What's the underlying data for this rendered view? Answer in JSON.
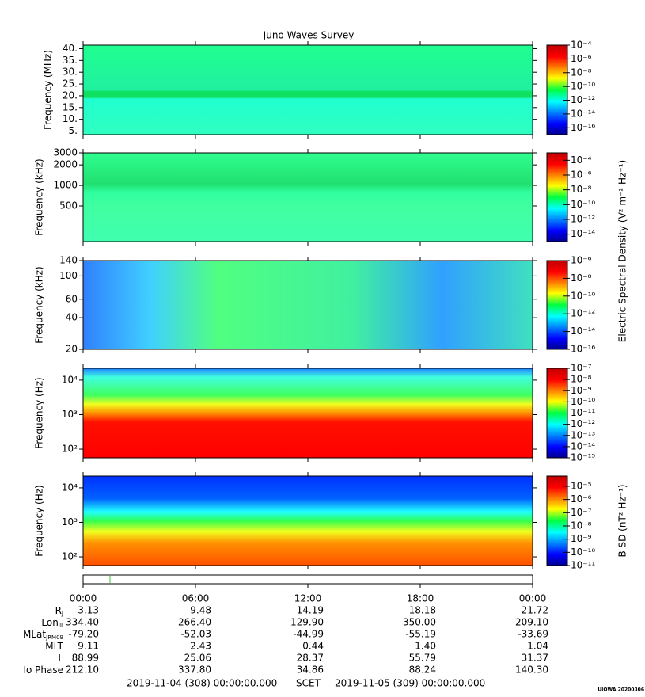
{
  "title": "Juno Waves Survey",
  "e_colorbar_label": "Electric Spectral Density (V² m⁻² Hz⁻¹)",
  "chart_data": [
    {
      "type": "heatmap",
      "ylabel": "Frequency (MHz)",
      "log_y": false,
      "ylim": [
        3.5,
        41.5
      ],
      "yticks": [
        {
          "value": 5,
          "label": "5."
        },
        {
          "value": 10,
          "label": "10."
        },
        {
          "value": 15,
          "label": "15."
        },
        {
          "value": 20,
          "label": "20."
        },
        {
          "value": 25,
          "label": "25."
        },
        {
          "value": 30,
          "label": "30."
        },
        {
          "value": 35,
          "label": "35."
        },
        {
          "value": 40,
          "label": "40."
        }
      ],
      "clim": [
        1e-17,
        0.0001
      ],
      "cticks": [
        {
          "value": 0.0001,
          "label": "10⁻⁴"
        },
        {
          "value": 1e-06,
          "label": "10⁻⁶"
        },
        {
          "value": 1e-08,
          "label": "10⁻⁸"
        },
        {
          "value": 1e-10,
          "label": "10⁻¹⁰"
        },
        {
          "value": 1e-12,
          "label": "10⁻¹²"
        },
        {
          "value": 1e-14,
          "label": "10⁻¹⁴"
        },
        {
          "value": 1e-16,
          "label": "10⁻¹⁶"
        }
      ]
    },
    {
      "type": "heatmap",
      "ylabel": "Frequency (kHz)",
      "log_y": true,
      "ylim": [
        150,
        3000
      ],
      "yticks": [
        500,
        1000,
        2000,
        3000
      ],
      "clim": [
        1e-15,
        0.001
      ],
      "cticks": [
        {
          "value": 0.0001,
          "label": "10⁻⁴"
        },
        {
          "value": 1e-06,
          "label": "10⁻⁶"
        },
        {
          "value": 1e-08,
          "label": "10⁻⁸"
        },
        {
          "value": 1e-10,
          "label": "10⁻¹⁰"
        },
        {
          "value": 1e-12,
          "label": "10⁻¹²"
        },
        {
          "value": 1e-14,
          "label": "10⁻¹⁴"
        }
      ]
    },
    {
      "type": "heatmap",
      "ylabel": "Frequency (kHz)",
      "log_y": true,
      "ylim": [
        20,
        140
      ],
      "yticks": [
        20,
        40,
        60,
        100,
        140
      ],
      "clim": [
        1e-16,
        1e-06
      ],
      "cticks": [
        {
          "value": 1e-06,
          "label": "10⁻⁶"
        },
        {
          "value": 1e-08,
          "label": "10⁻⁸"
        },
        {
          "value": 1e-10,
          "label": "10⁻¹⁰"
        },
        {
          "value": 1e-12,
          "label": "10⁻¹²"
        },
        {
          "value": 1e-14,
          "label": "10⁻¹⁴"
        },
        {
          "value": 1e-16,
          "label": "10⁻¹⁶"
        }
      ]
    },
    {
      "type": "heatmap",
      "ylabel": "Frequency (Hz)",
      "log_y": true,
      "ylim": [
        56,
        22000
      ],
      "yticks": [
        {
          "value": 100,
          "label": "10²"
        },
        {
          "value": 1000,
          "label": "10³"
        },
        {
          "value": 10000,
          "label": "10⁴"
        }
      ],
      "clim": [
        1e-15,
        1e-07
      ],
      "cticks": [
        {
          "value": 1e-07,
          "label": "10⁻⁷"
        },
        {
          "value": 1e-08,
          "label": "10⁻⁸"
        },
        {
          "value": 1e-09,
          "label": "10⁻⁹"
        },
        {
          "value": 1e-10,
          "label": "10⁻¹⁰"
        },
        {
          "value": 1e-11,
          "label": "10⁻¹¹"
        },
        {
          "value": 1e-12,
          "label": "10⁻¹²"
        },
        {
          "value": 1e-13,
          "label": "10⁻¹³"
        },
        {
          "value": 1e-14,
          "label": "10⁻¹⁴"
        },
        {
          "value": 1e-15,
          "label": "10⁻¹⁵"
        }
      ]
    },
    {
      "type": "heatmap",
      "ylabel": "Frequency (Hz)",
      "log_y": true,
      "ylim": [
        56,
        22000
      ],
      "yticks": [
        {
          "value": 100,
          "label": "10²"
        },
        {
          "value": 1000,
          "label": "10³"
        },
        {
          "value": 10000,
          "label": "10⁴"
        }
      ],
      "clim": [
        1e-11,
        6e-05
      ],
      "colorbar_label": "B SD (nT² Hz⁻¹)",
      "cticks": [
        {
          "value": 1e-05,
          "label": "10⁻⁵"
        },
        {
          "value": 1e-06,
          "label": "10⁻⁶"
        },
        {
          "value": 1e-07,
          "label": "10⁻⁷"
        },
        {
          "value": 1e-08,
          "label": "10⁻⁸"
        },
        {
          "value": 1e-09,
          "label": "10⁻⁹"
        },
        {
          "value": 1e-10,
          "label": "10⁻¹⁰"
        },
        {
          "value": 1e-11,
          "label": "10⁻¹¹"
        }
      ]
    }
  ],
  "time_axis": {
    "xlim": [
      0,
      24
    ],
    "ticks": [
      {
        "value": 0,
        "label": "00:00"
      },
      {
        "value": 6,
        "label": "06:00"
      },
      {
        "value": 12,
        "label": "12:00"
      },
      {
        "value": 18,
        "label": "18:00"
      },
      {
        "value": 24,
        "label": "00:00"
      }
    ]
  },
  "ephemeris": [
    {
      "label": "R",
      "sub": "J",
      "values": [
        "3.13",
        "9.48",
        "14.19",
        "18.18",
        "21.72"
      ]
    },
    {
      "label": "Lon",
      "sub": "III",
      "values": [
        "334.40",
        "266.40",
        "129.90",
        "350.00",
        "209.10"
      ]
    },
    {
      "label": "MLat",
      "sub": "JRM09",
      "values": [
        "-79.20",
        "-52.03",
        "-44.99",
        "-55.19",
        "-33.69"
      ]
    },
    {
      "label": "MLT",
      "values": [
        "9.11",
        "2.43",
        "0.44",
        "1.40",
        "1.04"
      ]
    },
    {
      "label": "L",
      "values": [
        "88.99",
        "25.06",
        "28.37",
        "55.79",
        "31.37"
      ]
    },
    {
      "label": "Io Phase",
      "values": [
        "212.10",
        "337.80",
        "34.86",
        "88.24",
        "140.30"
      ]
    }
  ],
  "footer": {
    "start": "2019-11-04 (308) 00:00:00.000",
    "scet": "SCET",
    "end": "2019-11-05 (309) 00:00:00.000",
    "stamp": "UIOWA 20200306"
  }
}
